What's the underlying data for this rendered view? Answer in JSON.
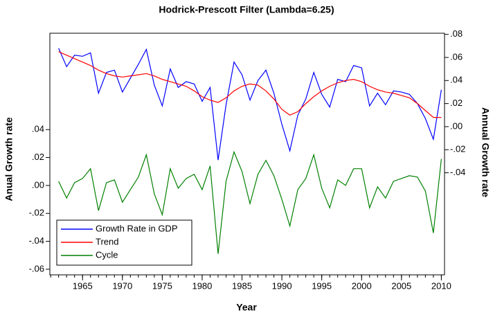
{
  "chart_data": {
    "type": "line",
    "title": "Hodrick-Prescott Filter (Lambda=6.25)",
    "x_label": "Year",
    "y_label": "Anual Growth rate",
    "y2_label": "Annual Growth rate",
    "x": [
      1962,
      1963,
      1964,
      1965,
      1966,
      1967,
      1968,
      1969,
      1970,
      1971,
      1972,
      1973,
      1974,
      1975,
      1976,
      1977,
      1978,
      1979,
      1980,
      1981,
      1982,
      1983,
      1984,
      1985,
      1986,
      1987,
      1988,
      1989,
      1990,
      1991,
      1992,
      1993,
      1994,
      1995,
      1996,
      1997,
      1998,
      1999,
      2000,
      2001,
      2002,
      2003,
      2004,
      2005,
      2006,
      2007,
      2008,
      2009,
      2010
    ],
    "series": [
      {
        "name": "Growth Rate in GDP",
        "color": "#0000ff",
        "axis": "y2",
        "values": [
          0.068,
          0.052,
          0.062,
          0.061,
          0.064,
          0.029,
          0.047,
          0.049,
          0.03,
          0.042,
          0.054,
          0.067,
          0.036,
          0.018,
          0.05,
          0.034,
          0.039,
          0.037,
          0.022,
          0.034,
          -0.029,
          0.019,
          0.056,
          0.045,
          0.023,
          0.04,
          0.049,
          0.029,
          0.002,
          -0.021,
          0.01,
          0.024,
          0.047,
          0.028,
          0.017,
          0.041,
          0.039,
          0.053,
          0.051,
          0.018,
          0.029,
          0.019,
          0.031,
          0.03,
          0.028,
          0.02,
          0.007,
          -0.011,
          0.032
        ]
      },
      {
        "name": "Trend",
        "color": "#ff0000",
        "axis": "y2",
        "values": [
          0.065,
          0.062,
          0.059,
          0.056,
          0.053,
          0.049,
          0.046,
          0.044,
          0.043,
          0.044,
          0.045,
          0.046,
          0.044,
          0.041,
          0.039,
          0.037,
          0.035,
          0.031,
          0.026,
          0.023,
          0.021,
          0.025,
          0.031,
          0.035,
          0.037,
          0.036,
          0.031,
          0.024,
          0.015,
          0.01,
          0.013,
          0.02,
          0.026,
          0.031,
          0.035,
          0.038,
          0.04,
          0.041,
          0.039,
          0.035,
          0.032,
          0.03,
          0.029,
          0.027,
          0.025,
          0.02,
          0.014,
          0.008,
          0.008
        ]
      },
      {
        "name": "Cycle",
        "color": "#008000",
        "axis": "y",
        "values": [
          0.003,
          -0.009,
          0.002,
          0.005,
          0.012,
          -0.018,
          0.002,
          0.004,
          -0.012,
          -0.003,
          0.006,
          0.022,
          -0.006,
          -0.021,
          0.012,
          -0.002,
          0.005,
          0.008,
          -0.003,
          0.014,
          -0.049,
          0.003,
          0.024,
          0.01,
          -0.013,
          0.008,
          0.018,
          0.007,
          -0.01,
          -0.029,
          -0.003,
          0.005,
          0.022,
          -0.002,
          -0.016,
          0.004,
          0.0,
          0.012,
          0.012,
          -0.016,
          -0.001,
          -0.009,
          0.003,
          0.005,
          0.007,
          0.006,
          -0.004,
          -0.034,
          0.019
        ]
      }
    ],
    "xlim": [
      1960.9,
      2010.4
    ],
    "xticks": [
      1965,
      1970,
      1975,
      1980,
      1985,
      1990,
      1995,
      2000,
      2005,
      2010
    ],
    "ylim": [
      -0.064,
      0.109
    ],
    "yticks": [
      {
        "value": -0.06,
        "label": "-.06"
      },
      {
        "value": -0.04,
        "label": "-.04"
      },
      {
        "value": -0.02,
        "label": "-.02"
      },
      {
        "value": 0,
        "label": ".00"
      },
      {
        "value": 0.02,
        "label": ".02"
      },
      {
        "value": 0.04,
        "label": ".04"
      }
    ],
    "y2lim": [
      -0.1285,
      0.081
    ],
    "y2ticks": [
      {
        "value": -0.04,
        "label": "-.04"
      },
      {
        "value": -0.02,
        "label": "-.02"
      },
      {
        "value": 0,
        "label": ".00"
      },
      {
        "value": 0.02,
        "label": ".02"
      },
      {
        "value": 0.04,
        "label": ".04"
      },
      {
        "value": 0.06,
        "label": ".06"
      },
      {
        "value": 0.08,
        "label": ".08"
      }
    ],
    "legend": "lower left"
  }
}
